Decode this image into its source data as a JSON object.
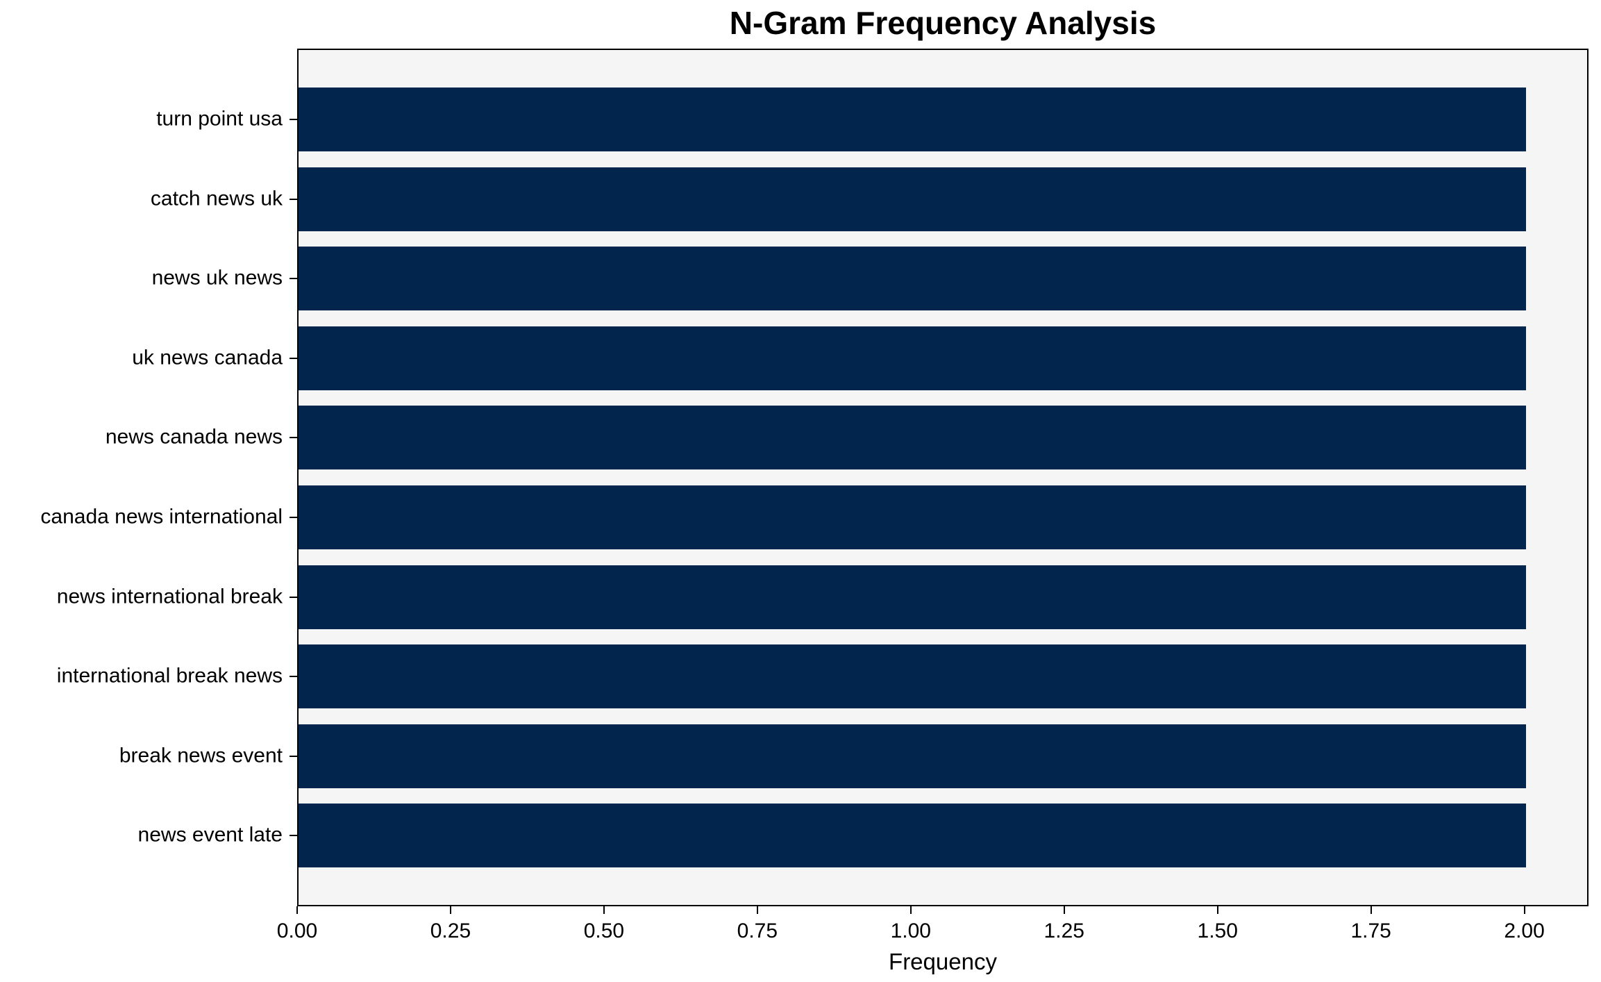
{
  "chart_data": {
    "type": "bar",
    "orientation": "horizontal",
    "title": "N-Gram Frequency Analysis",
    "xlabel": "Frequency",
    "ylabel": "",
    "categories": [
      "turn point usa",
      "catch news uk",
      "news uk news",
      "uk news canada",
      "news canada news",
      "canada news international",
      "news international break",
      "international break news",
      "break news event",
      "news event late"
    ],
    "values": [
      2,
      2,
      2,
      2,
      2,
      2,
      2,
      2,
      2,
      2
    ],
    "xlim": [
      0,
      2.1
    ],
    "x_ticks": [
      "0.00",
      "0.25",
      "0.50",
      "0.75",
      "1.00",
      "1.25",
      "1.50",
      "1.75",
      "2.00"
    ],
    "grid": false,
    "legend": null,
    "bar_color": "#02254e",
    "plot_background": "#f5f5f5",
    "frame_color": "#000000"
  }
}
